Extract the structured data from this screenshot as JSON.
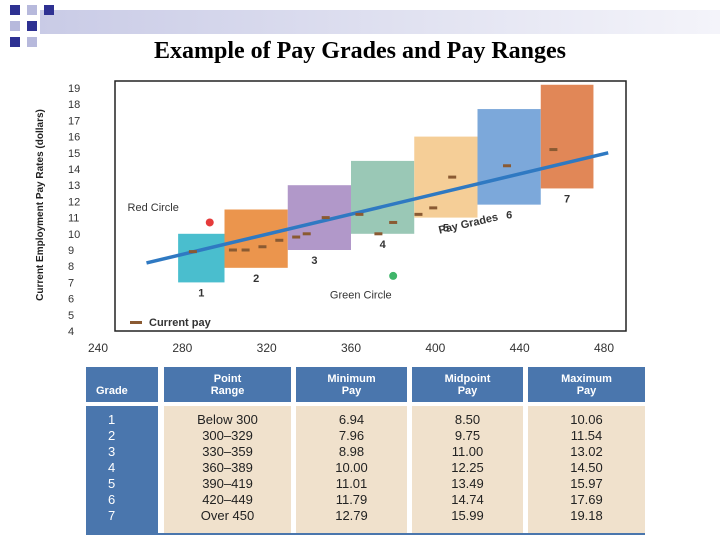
{
  "slide": {
    "title": "Example of Pay Grades and Pay Ranges"
  },
  "colors": {
    "grade_1": "#36b7c9",
    "grade_2": "#e98a3a",
    "grade_3": "#a98dc3",
    "grade_4": "#8fc2ae",
    "grade_5": "#f4c98c",
    "grade_6": "#6e9fd6",
    "grade_7": "#de7a45",
    "trend_line": "#2f79c2",
    "marker": "#8a5a32",
    "red_circle": "#e53b3b",
    "green_circle": "#3fb56a",
    "table_header": "#4a76ad",
    "table_body": "#f0e1cc"
  },
  "chart_data": {
    "type": "bar",
    "subtype": "floating-range",
    "ylabel": "Current Employment Pay Rates (dollars)",
    "xlabel": "",
    "xlim": [
      240,
      480
    ],
    "ylim": [
      4,
      19
    ],
    "x_ticks": [
      "240",
      "280",
      "320",
      "360",
      "400",
      "440",
      "480"
    ],
    "y_ticks": [
      "4",
      "5",
      "6",
      "7",
      "8",
      "9",
      "10",
      "11",
      "12",
      "13",
      "14",
      "15",
      "16",
      "17",
      "18",
      "19"
    ],
    "pay_grades": [
      {
        "label": "1",
        "x_start": 278,
        "x_end": 300,
        "min": 7.0,
        "max": 10.0
      },
      {
        "label": "2",
        "x_start": 300,
        "x_end": 330,
        "min": 7.9,
        "max": 11.5
      },
      {
        "label": "3",
        "x_start": 330,
        "x_end": 360,
        "min": 9.0,
        "max": 13.0
      },
      {
        "label": "4",
        "x_start": 360,
        "x_end": 390,
        "min": 10.0,
        "max": 14.5
      },
      {
        "label": "5",
        "x_start": 390,
        "x_end": 420,
        "min": 11.0,
        "max": 16.0
      },
      {
        "label": "6",
        "x_start": 420,
        "x_end": 450,
        "min": 11.8,
        "max": 17.7
      },
      {
        "label": "7",
        "x_start": 450,
        "x_end": 475,
        "min": 12.8,
        "max": 19.2
      }
    ],
    "trend_line": {
      "label": "Pay Grades",
      "x": [
        263,
        482
      ],
      "y": [
        8.2,
        15.0
      ]
    },
    "current_pay": [
      {
        "x": 285,
        "y": 8.9
      },
      {
        "x": 304,
        "y": 9.0
      },
      {
        "x": 310,
        "y": 9.0
      },
      {
        "x": 318,
        "y": 9.2
      },
      {
        "x": 326,
        "y": 9.6
      },
      {
        "x": 334,
        "y": 9.8
      },
      {
        "x": 339,
        "y": 10.0
      },
      {
        "x": 348,
        "y": 11.0
      },
      {
        "x": 364,
        "y": 11.2
      },
      {
        "x": 373,
        "y": 10.0
      },
      {
        "x": 380,
        "y": 10.7
      },
      {
        "x": 392,
        "y": 11.2
      },
      {
        "x": 399,
        "y": 11.6
      },
      {
        "x": 408,
        "y": 13.5
      },
      {
        "x": 434,
        "y": 14.2
      },
      {
        "x": 456,
        "y": 15.2
      }
    ],
    "annotations": [
      {
        "text": "Red Circle",
        "x": 254,
        "y": 11.4,
        "marker": "red",
        "marker_x": 293,
        "marker_y": 10.7
      },
      {
        "text": "Green Circle",
        "x": 350,
        "y": 6.0,
        "marker": "green",
        "marker_x": 380,
        "marker_y": 7.4
      }
    ],
    "legend": {
      "label": "Current pay",
      "position": "bottom-left"
    }
  },
  "table": {
    "headers": [
      "Grade",
      "Point\nRange",
      "Minimum\nPay",
      "Midpoint\nPay",
      "Maximum\nPay"
    ],
    "columns": [
      [
        "1",
        "2",
        "3",
        "4",
        "5",
        "6",
        "7"
      ],
      [
        "Below 300",
        "300–329",
        "330–359",
        "360–389",
        "390–419",
        "420–449",
        "Over 450"
      ],
      [
        "6.94",
        "7.96",
        "8.98",
        "10.00",
        "11.01",
        "11.79",
        "12.79"
      ],
      [
        "8.50",
        "9.75",
        "11.00",
        "12.25",
        "13.49",
        "14.74",
        "15.99"
      ],
      [
        "10.06",
        "11.54",
        "13.02",
        "14.50",
        "15.97",
        "17.69",
        "19.18"
      ]
    ]
  }
}
